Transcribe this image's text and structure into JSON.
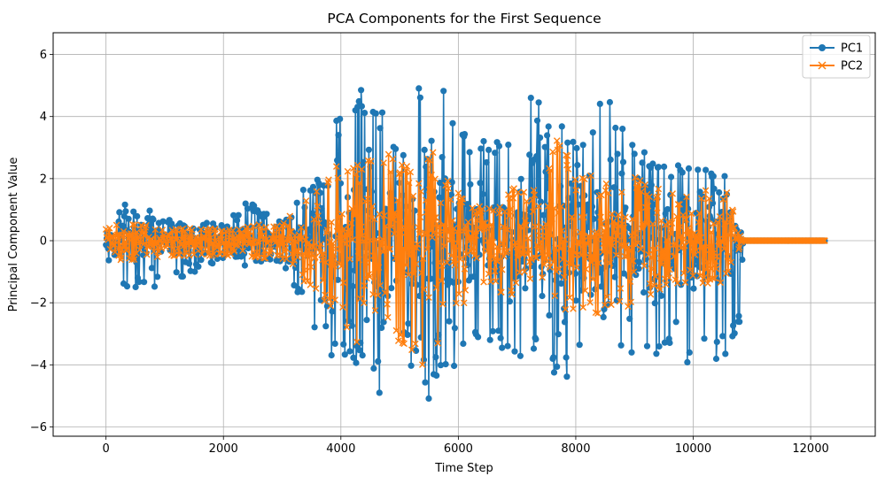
{
  "chart_data": {
    "type": "line",
    "title": "PCA Components for the First Sequence",
    "xlabel": "Time Step",
    "ylabel": "Principal Component Value",
    "xlim": [
      -900,
      13100
    ],
    "ylim": [
      -6.3,
      6.7
    ],
    "xticks": [
      0,
      2000,
      4000,
      6000,
      8000,
      10000,
      12000
    ],
    "yticks": [
      -6,
      -4,
      -2,
      0,
      2,
      4,
      6
    ],
    "grid": true,
    "legend_position": "top-right",
    "series": [
      {
        "name": "PC1",
        "color": "#1f77b4",
        "marker": "o",
        "envelope": {
          "x": [
            0,
            300,
            1000,
            2000,
            2400,
            3000,
            3300,
            3600,
            3900,
            4200,
            4400,
            4600,
            4750,
            5000,
            5250,
            5500,
            5650,
            6000,
            6500,
            7000,
            7250,
            7500,
            7750,
            8000,
            8500,
            9000,
            9500,
            10000,
            10500,
            10800,
            10850,
            12250
          ],
          "max": [
            0.5,
            1.2,
            0.6,
            0.6,
            1.3,
            0.6,
            1.8,
            2.0,
            4.4,
            4.2,
            5.2,
            4.5,
            4.6,
            3.0,
            5.55,
            4.0,
            6.1,
            4.0,
            3.2,
            3.5,
            5.3,
            3.6,
            5.0,
            3.0,
            4.9,
            3.2,
            2.7,
            2.5,
            2.0,
            1.6,
            0.0,
            0.0
          ],
          "min": [
            -0.5,
            -1.55,
            -1.5,
            -0.6,
            -0.7,
            -0.7,
            -1.8,
            -3.1,
            -4.0,
            -4.2,
            -5.0,
            -4.7,
            -5.8,
            -3.2,
            -4.5,
            -5.1,
            -4.5,
            -4.1,
            -3.3,
            -4.0,
            -4.0,
            -3.5,
            -5.05,
            -3.4,
            -3.3,
            -3.8,
            -3.6,
            -4.0,
            -3.9,
            -2.6,
            0.0,
            0.0
          ]
        }
      },
      {
        "name": "PC2",
        "color": "#ff7f0e",
        "marker": "x",
        "envelope": {
          "x": [
            0,
            300,
            1000,
            2000,
            3000,
            3600,
            4000,
            4400,
            4600,
            4800,
            5200,
            5600,
            6000,
            6500,
            7000,
            7500,
            7700,
            8000,
            8800,
            9500,
            10000,
            10500,
            10850,
            12250
          ],
          "max": [
            0.4,
            0.7,
            0.4,
            0.4,
            0.6,
            1.8,
            2.6,
            2.9,
            3.0,
            2.9,
            2.2,
            2.9,
            1.4,
            1.0,
            1.9,
            2.0,
            3.6,
            2.5,
            2.3,
            1.6,
            1.4,
            2.0,
            0.0,
            0.0
          ],
          "min": [
            -0.4,
            -0.7,
            -0.5,
            -0.5,
            -0.6,
            -1.8,
            -2.5,
            -4.1,
            -3.5,
            -2.6,
            -4.0,
            -4.4,
            -2.2,
            -1.6,
            -1.8,
            -2.1,
            -2.3,
            -2.4,
            -2.3,
            -1.5,
            -1.3,
            -1.5,
            0.0,
            0.0
          ]
        }
      }
    ]
  }
}
